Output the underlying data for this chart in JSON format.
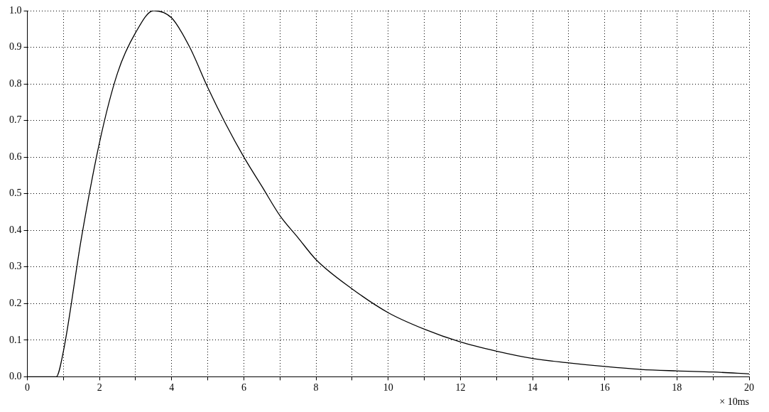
{
  "chart_data": {
    "type": "line",
    "xlabel": "× 10ms",
    "xlim": [
      0,
      20
    ],
    "xticks": [
      0,
      {
        "value": 1,
        "label": null
      },
      2,
      {
        "value": 3,
        "label": null
      },
      4,
      {
        "value": 5,
        "label": null
      },
      6,
      {
        "value": 7,
        "label": null
      },
      8,
      {
        "value": 9,
        "label": null
      },
      10,
      {
        "value": 11,
        "label": null
      },
      12,
      {
        "value": 13,
        "label": null
      },
      14,
      {
        "value": 15,
        "label": null
      },
      16,
      {
        "value": 17,
        "label": null
      },
      18,
      {
        "value": 19,
        "label": null
      },
      20
    ],
    "ylim": [
      0,
      1
    ],
    "yticks": [
      {
        "value": 0,
        "label": "0.0"
      },
      0.1,
      0.2,
      0.3,
      0.4,
      0.5,
      0.6,
      0.7,
      0.8,
      0.9,
      {
        "value": 1,
        "label": "1.0"
      }
    ],
    "grid": true,
    "legend": false,
    "marker": "none",
    "line_style": "solid",
    "series": [
      {
        "color": "#000000",
        "x": [
          0,
          0.8,
          1,
          1.5,
          2,
          2.5,
          3,
          3.5,
          4,
          4.5,
          5,
          5.5,
          6,
          6.5,
          7,
          7.5,
          8,
          9,
          10,
          11,
          12,
          13,
          14,
          15,
          16,
          17,
          18,
          19,
          20
        ],
        "values": [
          0,
          0,
          0.07,
          0.38,
          0.64,
          0.83,
          0.94,
          1.0,
          0.98,
          0.9,
          0.79,
          0.69,
          0.6,
          0.52,
          0.44,
          0.38,
          0.32,
          0.24,
          0.175,
          0.13,
          0.095,
          0.07,
          0.05,
          0.038,
          0.028,
          0.02,
          0.016,
          0.013,
          0.008
        ]
      }
    ]
  }
}
